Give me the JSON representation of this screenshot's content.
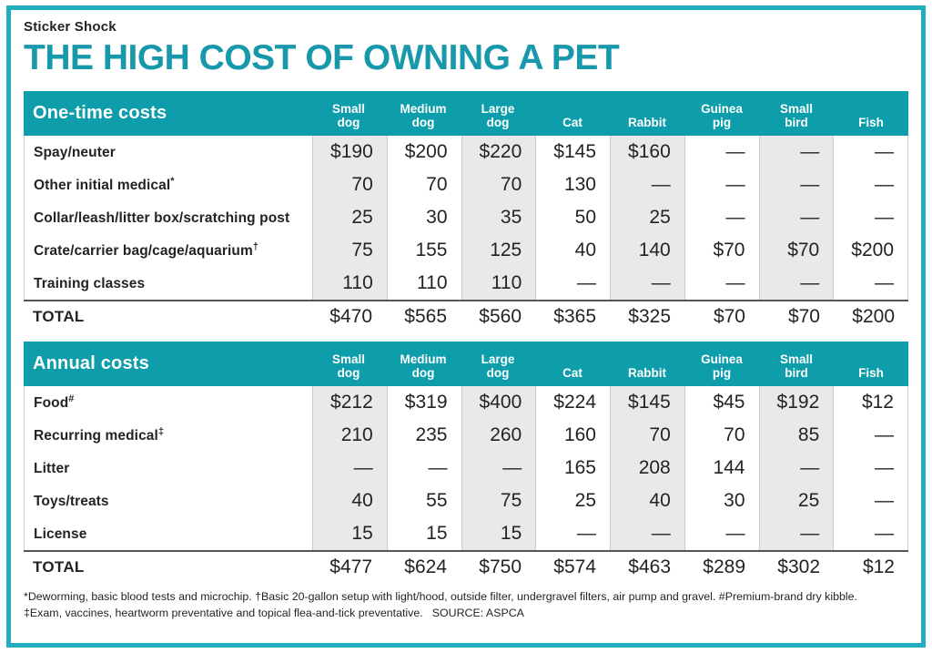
{
  "page": {
    "kicker": "Sticker Shock",
    "title": "THE HIGH COST OF OWNING A PET"
  },
  "columns_display": [
    "Small\ndog",
    "Medium\ndog",
    "Large\ndog",
    "Cat",
    "Rabbit",
    "Guinea\npig",
    "Small\nbird",
    "Fish"
  ],
  "chart_data": [
    {
      "type": "table",
      "title": "One-time costs",
      "columns": [
        "Small dog",
        "Medium dog",
        "Large dog",
        "Cat",
        "Rabbit",
        "Guinea pig",
        "Small bird",
        "Fish"
      ],
      "rows": [
        {
          "label": "Spay/neuter",
          "sup": "",
          "values": [
            "$190",
            "$200",
            "$220",
            "$145",
            "$160",
            "—",
            "—",
            "—"
          ]
        },
        {
          "label": "Other initial medical",
          "sup": "*",
          "values": [
            "70",
            "70",
            "70",
            "130",
            "—",
            "—",
            "—",
            "—"
          ]
        },
        {
          "label": "Collar/leash/litter box/scratching post",
          "sup": "",
          "values": [
            "25",
            "30",
            "35",
            "50",
            "25",
            "—",
            "—",
            "—"
          ]
        },
        {
          "label": "Crate/carrier bag/cage/aquarium",
          "sup": "†",
          "values": [
            "75",
            "155",
            "125",
            "40",
            "140",
            "$70",
            "$70",
            "$200"
          ]
        },
        {
          "label": "Training classes",
          "sup": "",
          "values": [
            "110",
            "110",
            "110",
            "—",
            "—",
            "—",
            "—",
            "—"
          ]
        }
      ],
      "total": {
        "label": "TOTAL",
        "values": [
          "$470",
          "$565",
          "$560",
          "$365",
          "$325",
          "$70",
          "$70",
          "$200"
        ]
      }
    },
    {
      "type": "table",
      "title": "Annual costs",
      "columns": [
        "Small dog",
        "Medium dog",
        "Large dog",
        "Cat",
        "Rabbit",
        "Guinea pig",
        "Small bird",
        "Fish"
      ],
      "rows": [
        {
          "label": "Food",
          "sup": "#",
          "values": [
            "$212",
            "$319",
            "$400",
            "$224",
            "$145",
            "$45",
            "$192",
            "$12"
          ]
        },
        {
          "label": "Recurring medical",
          "sup": "‡",
          "values": [
            "210",
            "235",
            "260",
            "160",
            "70",
            "70",
            "85",
            "—"
          ]
        },
        {
          "label": "Litter",
          "sup": "",
          "values": [
            "—",
            "—",
            "—",
            "165",
            "208",
            "144",
            "—",
            "—"
          ]
        },
        {
          "label": "Toys/treats",
          "sup": "",
          "values": [
            "40",
            "55",
            "75",
            "25",
            "40",
            "30",
            "25",
            "—"
          ]
        },
        {
          "label": "License",
          "sup": "",
          "values": [
            "15",
            "15",
            "15",
            "—",
            "—",
            "—",
            "—",
            "—"
          ]
        }
      ],
      "total": {
        "label": "TOTAL",
        "values": [
          "$477",
          "$624",
          "$750",
          "$574",
          "$463",
          "$289",
          "$302",
          "$12"
        ]
      }
    }
  ],
  "footnote": {
    "notes": "*Deworming, basic blood tests and microchip.  †Basic 20-gallon setup with light/hood, outside filter, undergravel filters, air pump and gravel.  #Premium-brand dry kibble.  ‡Exam, vaccines, heartworm preventative and topical flea-and-tick preventative.",
    "source": "SOURCE: ASPCA"
  },
  "colors": {
    "header_teal": "#0d9dab",
    "title_teal": "#1898ab",
    "frame_teal": "#23aebf",
    "column_shade": "#e9e9ec",
    "rule_dark": "#55565a",
    "text_dark": "#232323"
  }
}
